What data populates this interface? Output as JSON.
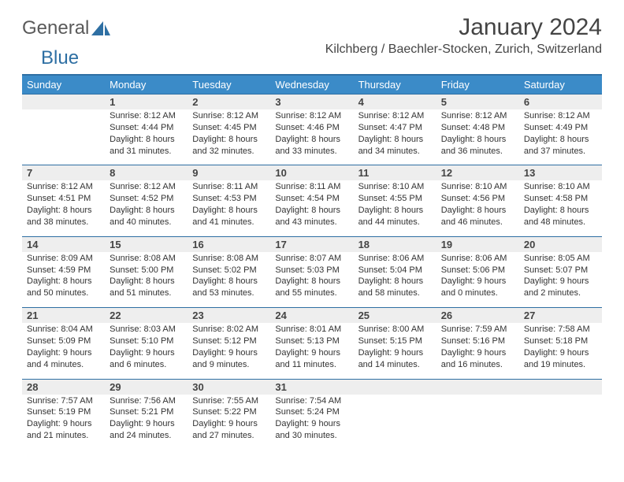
{
  "logo": {
    "text1": "General",
    "text2": "Blue",
    "brand_blue": "#2e6fa3",
    "brand_gray": "#5a5a5a"
  },
  "title": "January 2024",
  "location": "Kilchberg / Baechler-Stocken, Zurich, Switzerland",
  "colors": {
    "header_bg": "#3b8bc8",
    "header_text": "#ffffff",
    "border_blue": "#2e6fa3",
    "numrow_bg": "#eeeeee",
    "text": "#333333"
  },
  "weekdays": [
    "Sunday",
    "Monday",
    "Tuesday",
    "Wednesday",
    "Thursday",
    "Friday",
    "Saturday"
  ],
  "weeks": [
    {
      "nums": [
        "",
        "1",
        "2",
        "3",
        "4",
        "5",
        "6"
      ],
      "cells": [
        {},
        {
          "sunrise": "Sunrise: 8:12 AM",
          "sunset": "Sunset: 4:44 PM",
          "day1": "Daylight: 8 hours",
          "day2": "and 31 minutes."
        },
        {
          "sunrise": "Sunrise: 8:12 AM",
          "sunset": "Sunset: 4:45 PM",
          "day1": "Daylight: 8 hours",
          "day2": "and 32 minutes."
        },
        {
          "sunrise": "Sunrise: 8:12 AM",
          "sunset": "Sunset: 4:46 PM",
          "day1": "Daylight: 8 hours",
          "day2": "and 33 minutes."
        },
        {
          "sunrise": "Sunrise: 8:12 AM",
          "sunset": "Sunset: 4:47 PM",
          "day1": "Daylight: 8 hours",
          "day2": "and 34 minutes."
        },
        {
          "sunrise": "Sunrise: 8:12 AM",
          "sunset": "Sunset: 4:48 PM",
          "day1": "Daylight: 8 hours",
          "day2": "and 36 minutes."
        },
        {
          "sunrise": "Sunrise: 8:12 AM",
          "sunset": "Sunset: 4:49 PM",
          "day1": "Daylight: 8 hours",
          "day2": "and 37 minutes."
        }
      ]
    },
    {
      "nums": [
        "7",
        "8",
        "9",
        "10",
        "11",
        "12",
        "13"
      ],
      "cells": [
        {
          "sunrise": "Sunrise: 8:12 AM",
          "sunset": "Sunset: 4:51 PM",
          "day1": "Daylight: 8 hours",
          "day2": "and 38 minutes."
        },
        {
          "sunrise": "Sunrise: 8:12 AM",
          "sunset": "Sunset: 4:52 PM",
          "day1": "Daylight: 8 hours",
          "day2": "and 40 minutes."
        },
        {
          "sunrise": "Sunrise: 8:11 AM",
          "sunset": "Sunset: 4:53 PM",
          "day1": "Daylight: 8 hours",
          "day2": "and 41 minutes."
        },
        {
          "sunrise": "Sunrise: 8:11 AM",
          "sunset": "Sunset: 4:54 PM",
          "day1": "Daylight: 8 hours",
          "day2": "and 43 minutes."
        },
        {
          "sunrise": "Sunrise: 8:10 AM",
          "sunset": "Sunset: 4:55 PM",
          "day1": "Daylight: 8 hours",
          "day2": "and 44 minutes."
        },
        {
          "sunrise": "Sunrise: 8:10 AM",
          "sunset": "Sunset: 4:56 PM",
          "day1": "Daylight: 8 hours",
          "day2": "and 46 minutes."
        },
        {
          "sunrise": "Sunrise: 8:10 AM",
          "sunset": "Sunset: 4:58 PM",
          "day1": "Daylight: 8 hours",
          "day2": "and 48 minutes."
        }
      ]
    },
    {
      "nums": [
        "14",
        "15",
        "16",
        "17",
        "18",
        "19",
        "20"
      ],
      "cells": [
        {
          "sunrise": "Sunrise: 8:09 AM",
          "sunset": "Sunset: 4:59 PM",
          "day1": "Daylight: 8 hours",
          "day2": "and 50 minutes."
        },
        {
          "sunrise": "Sunrise: 8:08 AM",
          "sunset": "Sunset: 5:00 PM",
          "day1": "Daylight: 8 hours",
          "day2": "and 51 minutes."
        },
        {
          "sunrise": "Sunrise: 8:08 AM",
          "sunset": "Sunset: 5:02 PM",
          "day1": "Daylight: 8 hours",
          "day2": "and 53 minutes."
        },
        {
          "sunrise": "Sunrise: 8:07 AM",
          "sunset": "Sunset: 5:03 PM",
          "day1": "Daylight: 8 hours",
          "day2": "and 55 minutes."
        },
        {
          "sunrise": "Sunrise: 8:06 AM",
          "sunset": "Sunset: 5:04 PM",
          "day1": "Daylight: 8 hours",
          "day2": "and 58 minutes."
        },
        {
          "sunrise": "Sunrise: 8:06 AM",
          "sunset": "Sunset: 5:06 PM",
          "day1": "Daylight: 9 hours",
          "day2": "and 0 minutes."
        },
        {
          "sunrise": "Sunrise: 8:05 AM",
          "sunset": "Sunset: 5:07 PM",
          "day1": "Daylight: 9 hours",
          "day2": "and 2 minutes."
        }
      ]
    },
    {
      "nums": [
        "21",
        "22",
        "23",
        "24",
        "25",
        "26",
        "27"
      ],
      "cells": [
        {
          "sunrise": "Sunrise: 8:04 AM",
          "sunset": "Sunset: 5:09 PM",
          "day1": "Daylight: 9 hours",
          "day2": "and 4 minutes."
        },
        {
          "sunrise": "Sunrise: 8:03 AM",
          "sunset": "Sunset: 5:10 PM",
          "day1": "Daylight: 9 hours",
          "day2": "and 6 minutes."
        },
        {
          "sunrise": "Sunrise: 8:02 AM",
          "sunset": "Sunset: 5:12 PM",
          "day1": "Daylight: 9 hours",
          "day2": "and 9 minutes."
        },
        {
          "sunrise": "Sunrise: 8:01 AM",
          "sunset": "Sunset: 5:13 PM",
          "day1": "Daylight: 9 hours",
          "day2": "and 11 minutes."
        },
        {
          "sunrise": "Sunrise: 8:00 AM",
          "sunset": "Sunset: 5:15 PM",
          "day1": "Daylight: 9 hours",
          "day2": "and 14 minutes."
        },
        {
          "sunrise": "Sunrise: 7:59 AM",
          "sunset": "Sunset: 5:16 PM",
          "day1": "Daylight: 9 hours",
          "day2": "and 16 minutes."
        },
        {
          "sunrise": "Sunrise: 7:58 AM",
          "sunset": "Sunset: 5:18 PM",
          "day1": "Daylight: 9 hours",
          "day2": "and 19 minutes."
        }
      ]
    },
    {
      "nums": [
        "28",
        "29",
        "30",
        "31",
        "",
        "",
        ""
      ],
      "cells": [
        {
          "sunrise": "Sunrise: 7:57 AM",
          "sunset": "Sunset: 5:19 PM",
          "day1": "Daylight: 9 hours",
          "day2": "and 21 minutes."
        },
        {
          "sunrise": "Sunrise: 7:56 AM",
          "sunset": "Sunset: 5:21 PM",
          "day1": "Daylight: 9 hours",
          "day2": "and 24 minutes."
        },
        {
          "sunrise": "Sunrise: 7:55 AM",
          "sunset": "Sunset: 5:22 PM",
          "day1": "Daylight: 9 hours",
          "day2": "and 27 minutes."
        },
        {
          "sunrise": "Sunrise: 7:54 AM",
          "sunset": "Sunset: 5:24 PM",
          "day1": "Daylight: 9 hours",
          "day2": "and 30 minutes."
        },
        {},
        {},
        {}
      ]
    }
  ]
}
